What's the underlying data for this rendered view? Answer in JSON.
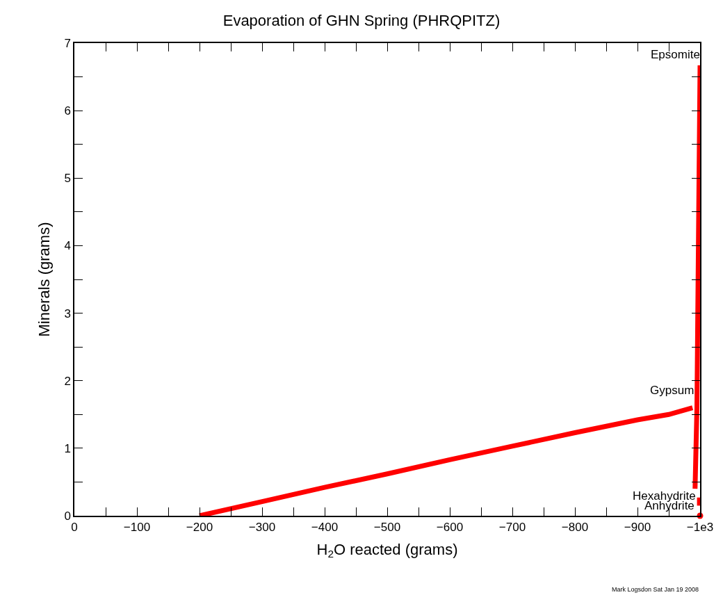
{
  "chart_data": {
    "type": "line",
    "title": "Evaporation of GHN Spring (PHRQPITZ)",
    "xlabel": "H$_{2}$O reacted (grams)",
    "ylabel": "Minerals (grams)",
    "xlim": [
      0,
      -1000
    ],
    "ylim": [
      0,
      7
    ],
    "xticks": [
      0,
      {
        "value": -50,
        "label": null
      },
      {
        "value": -100,
        "label": "−100"
      },
      {
        "value": -150,
        "label": null
      },
      {
        "value": -200,
        "label": "−200"
      },
      {
        "value": -250,
        "label": null
      },
      {
        "value": -300,
        "label": "−300"
      },
      {
        "value": -350,
        "label": null
      },
      {
        "value": -400,
        "label": "−400"
      },
      {
        "value": -450,
        "label": null
      },
      {
        "value": -500,
        "label": "−500"
      },
      {
        "value": -550,
        "label": null
      },
      {
        "value": -600,
        "label": "−600"
      },
      {
        "value": -650,
        "label": null
      },
      {
        "value": -700,
        "label": "−700"
      },
      {
        "value": -750,
        "label": null
      },
      {
        "value": -800,
        "label": "−800"
      },
      {
        "value": -850,
        "label": null
      },
      {
        "value": -900,
        "label": "−900"
      },
      {
        "value": -950,
        "label": null
      },
      {
        "value": -1000,
        "label": "−1e3"
      }
    ],
    "yticks": [
      0,
      {
        "value": 0.5,
        "label": null
      },
      1,
      {
        "value": 1.5,
        "label": null
      },
      2,
      {
        "value": 2.5,
        "label": null
      },
      3,
      {
        "value": 3.5,
        "label": null
      },
      4,
      {
        "value": 4.5,
        "label": null
      },
      5,
      {
        "value": 5.5,
        "label": null
      },
      6,
      {
        "value": 6.5,
        "label": null
      },
      7
    ],
    "legend": false,
    "line_style": "solid",
    "series": [
      {
        "name": "Gypsum",
        "color": "#ff0000",
        "x": [
          -200,
          -300,
          -400,
          -500,
          -600,
          -700,
          -800,
          -900,
          -950,
          -988
        ],
        "values": [
          0,
          0.21,
          0.42,
          0.62,
          0.83,
          1.03,
          1.23,
          1.42,
          1.5,
          1.6
        ]
      },
      {
        "name": "Epsomite",
        "color": "#ff0000",
        "x": [
          -992,
          -995,
          -1000
        ],
        "values": [
          0.4,
          1.6,
          6.67
        ]
      },
      {
        "name": "Hexahydrite",
        "color": "#ff0000",
        "x": [
          -999,
          -999
        ],
        "values": [
          0.15,
          0.27
        ]
      },
      {
        "name": "Anhydrite",
        "type": "scatter",
        "color": "#ff0000",
        "x": [
          -1000
        ],
        "values": [
          0
        ]
      }
    ],
    "annotations": [
      "Mark Logsdon Sat Jan 19 2008"
    ]
  }
}
